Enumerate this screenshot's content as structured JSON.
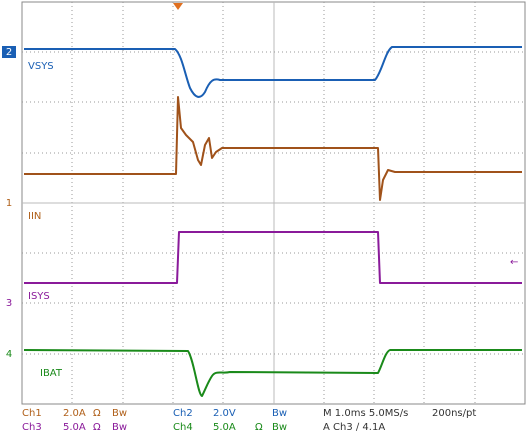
{
  "markers": [
    "2",
    "1",
    "3",
    "4"
  ],
  "trace_labels": [
    "VSYS",
    "IIN",
    "ISYS",
    "IBAT"
  ],
  "footer": {
    "row1": [
      "Ch1",
      "2.0A",
      "Ω",
      "Bw",
      "Ch2",
      "2.0V",
      "Bw",
      "M 1.0ms 5.0MS/s",
      "200ns/pt"
    ],
    "row2": [
      "Ch3",
      "5.0A",
      "Ω",
      "Bw",
      "Ch4",
      "5.0A",
      "Ω",
      "Bw",
      "A Ch3 ∕ 4.1A"
    ]
  }
}
